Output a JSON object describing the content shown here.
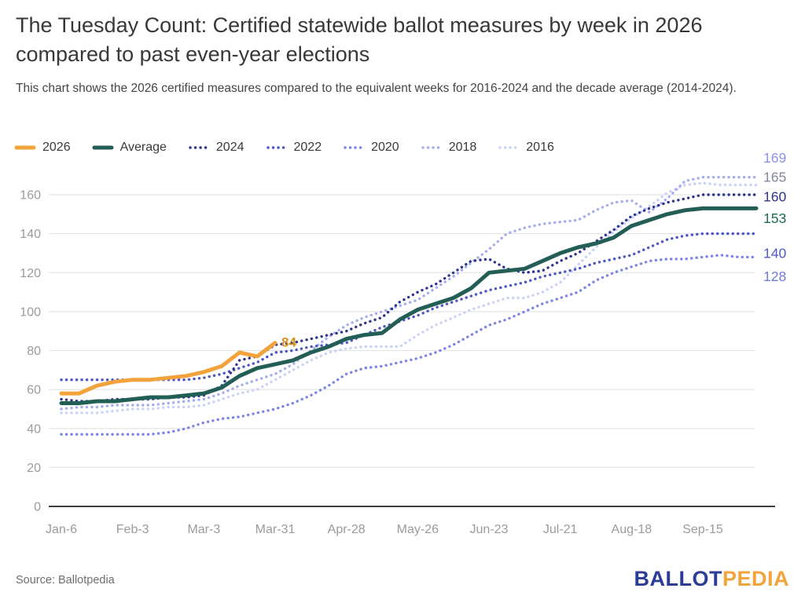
{
  "header": {
    "title": "The Tuesday Count: Certified statewide ballot measures by week in 2026 compared to past even-year elections",
    "subtitle": "This chart shows the 2026 certified measures compared to the equivalent weeks for 2016-2024 and the decade average (2014-2024)."
  },
  "footer": {
    "source": "Source: Ballotpedia",
    "logo_part1": "BALLOT",
    "logo_part2": "PEDIA",
    "logo_color1": "#2C3C97",
    "logo_color2": "#F2A33C"
  },
  "chart_data": {
    "type": "line",
    "title": "Certified statewide ballot measures by week",
    "xlabel": "",
    "ylabel": "",
    "ylim": [
      0,
      170
    ],
    "y_ticks": [
      0,
      20,
      40,
      60,
      80,
      100,
      120,
      140,
      160
    ],
    "grid": true,
    "legend_position": "top",
    "x_unit": "week",
    "weeks_total": 40,
    "x_tick_labels": [
      "Jan-6",
      "Feb-3",
      "Mar-3",
      "Mar-31",
      "Apr-28",
      "May-26",
      "Jun-23",
      "Jul-21",
      "Aug-18",
      "Sep-15"
    ],
    "x_tick_weeks": [
      0,
      4,
      8,
      12,
      16,
      20,
      24,
      28,
      32,
      36
    ],
    "series": [
      {
        "name": "2016",
        "color": "#CBD2F8",
        "style": "dotted",
        "start_week": 0,
        "values": [
          48,
          48,
          48,
          49,
          50,
          50,
          51,
          51,
          52,
          55,
          58,
          60,
          65,
          70,
          75,
          79,
          81,
          82,
          82,
          82,
          88,
          93,
          97,
          101,
          104,
          107,
          107,
          110,
          115,
          124,
          133,
          141,
          148,
          154,
          161,
          165,
          166,
          165,
          165,
          165
        ]
      },
      {
        "name": "2018",
        "color": "#A5ADF2",
        "style": "dotted",
        "start_week": 0,
        "values": [
          50,
          51,
          51,
          52,
          52,
          52,
          53,
          54,
          55,
          58,
          62,
          65,
          68,
          73,
          80,
          87,
          93,
          97,
          100,
          103,
          106,
          112,
          118,
          125,
          132,
          140,
          143,
          145,
          146,
          147,
          152,
          156,
          157,
          151,
          158,
          167,
          169,
          169,
          169,
          169
        ]
      },
      {
        "name": "2020",
        "color": "#7B84E8",
        "style": "dotted",
        "start_week": 0,
        "values": [
          37,
          37,
          37,
          37,
          37,
          37,
          38,
          40,
          43,
          45,
          46,
          48,
          50,
          53,
          57,
          62,
          68,
          71,
          72,
          74,
          76,
          79,
          83,
          88,
          93,
          96,
          100,
          104,
          107,
          110,
          116,
          120,
          123,
          126,
          127,
          127,
          128,
          129,
          128,
          128
        ]
      },
      {
        "name": "2022",
        "color": "#4C56C4",
        "style": "dotted",
        "start_week": 0,
        "values": [
          65,
          65,
          65,
          65,
          65,
          65,
          65,
          65,
          66,
          68,
          71,
          74,
          79,
          80,
          82,
          83,
          84,
          88,
          92,
          95,
          98,
          102,
          105,
          108,
          111,
          113,
          115,
          118,
          120,
          122,
          125,
          127,
          129,
          133,
          137,
          139,
          140,
          140,
          140,
          140
        ]
      },
      {
        "name": "2024",
        "color": "#2D3590",
        "style": "dotted",
        "start_week": 0,
        "values": [
          55,
          54,
          54,
          55,
          55,
          55,
          56,
          56,
          57,
          62,
          75,
          77,
          83,
          84,
          86,
          88,
          90,
          94,
          97,
          105,
          110,
          114,
          120,
          126,
          127,
          122,
          120,
          121,
          126,
          130,
          136,
          142,
          149,
          153,
          156,
          158,
          160,
          160,
          160,
          160
        ]
      },
      {
        "name": "Average",
        "color": "#235E56",
        "style": "solid",
        "start_week": 0,
        "values": [
          53,
          53,
          54,
          54,
          55,
          56,
          56,
          57,
          58,
          61,
          67,
          71,
          73,
          75,
          79,
          82,
          86,
          88,
          89,
          96,
          101,
          104,
          107,
          112,
          120,
          121,
          122,
          126,
          130,
          133,
          135,
          138,
          144,
          147,
          150,
          152,
          153,
          153,
          153,
          153
        ]
      },
      {
        "name": "2026",
        "color": "#F2A33C",
        "style": "solid",
        "start_week": 0,
        "values": [
          58,
          58,
          62,
          64,
          65,
          65,
          66,
          67,
          69,
          72,
          79,
          77,
          84
        ]
      }
    ],
    "legend_order": [
      "2026",
      "Average",
      "2024",
      "2022",
      "2020",
      "2018",
      "2016"
    ],
    "annotation": {
      "text": "84",
      "series": "2026",
      "week": 12,
      "value": 84,
      "color": "#D8921C"
    },
    "end_labels": [
      {
        "text": "169",
        "color": "#8A93EC",
        "y_at": 179
      },
      {
        "text": "165",
        "color": "#83879F",
        "y_at": 169
      },
      {
        "text": "160",
        "color": "#2D3590",
        "y_at": 159
      },
      {
        "text": "153",
        "color": "#1D6B55",
        "y_at": 148
      },
      {
        "text": "140",
        "color": "#4C5BC9",
        "y_at": 130
      },
      {
        "text": "128",
        "color": "#6E79DD",
        "y_at": 118
      }
    ]
  }
}
